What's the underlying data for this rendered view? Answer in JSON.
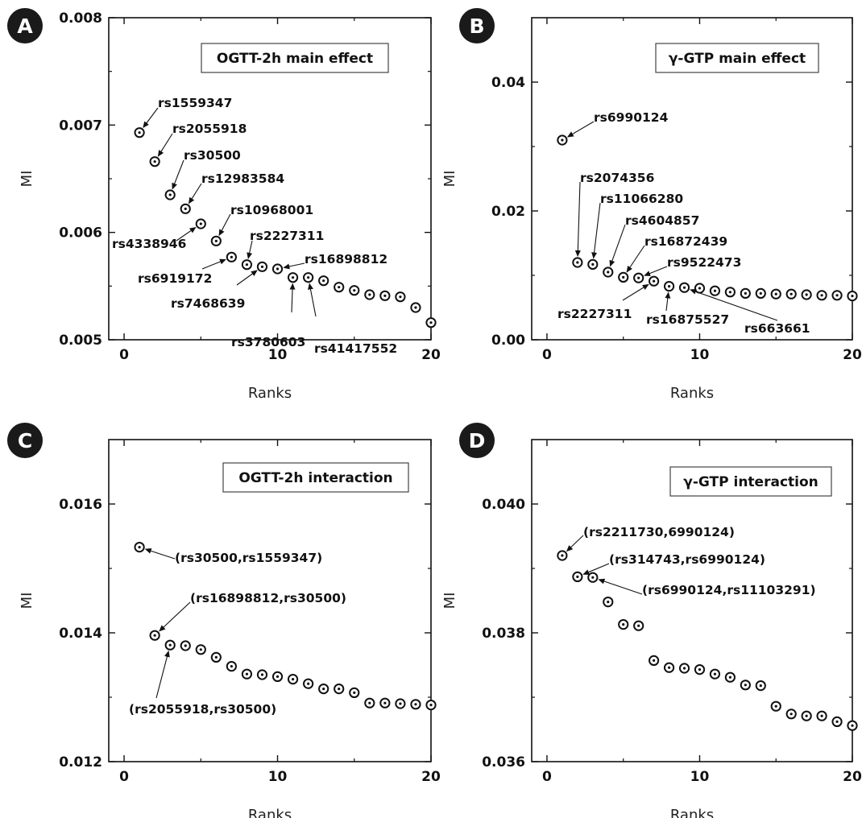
{
  "chart_data": [
    {
      "panel": "A",
      "type": "scatter",
      "title": "OGTT-2h main effect",
      "xlabel": "Ranks",
      "ylabel": "MI",
      "xlim": [
        -1,
        20
      ],
      "ylim": [
        0.005,
        0.008
      ],
      "xticks": [
        0,
        10,
        20
      ],
      "xtick_labels": [
        "0",
        "10",
        "20"
      ],
      "yticks": [
        0.005,
        0.006,
        0.007,
        0.008
      ],
      "ytick_labels": [
        "0.005",
        "0.006",
        "0.007",
        "0.008"
      ],
      "x": [
        1,
        2,
        3,
        4,
        5,
        6,
        7,
        8,
        9,
        10,
        11,
        12,
        13,
        14,
        15,
        16,
        17,
        18,
        19,
        20
      ],
      "y": [
        0.00693,
        0.00666,
        0.00635,
        0.00622,
        0.00608,
        0.00592,
        0.00577,
        0.0057,
        0.00568,
        0.00566,
        0.00558,
        0.00558,
        0.00555,
        0.00549,
        0.00546,
        0.00542,
        0.00541,
        0.0054,
        0.0053,
        0.00516
      ],
      "annotations": [
        {
          "text": "rs1559347",
          "point": 1
        },
        {
          "text": "rs2055918",
          "point": 2
        },
        {
          "text": "rs30500",
          "point": 3
        },
        {
          "text": "rs12983584",
          "point": 4
        },
        {
          "text": "rs4338946",
          "point": 5
        },
        {
          "text": "rs10968001",
          "point": 6
        },
        {
          "text": "rs6919172",
          "point": 7
        },
        {
          "text": "rs2227311",
          "point": 8
        },
        {
          "text": "rs7468639",
          "point": 9
        },
        {
          "text": "rs16898812",
          "point": 10
        },
        {
          "text": "rs3780603",
          "point": 11
        },
        {
          "text": "rs41417552",
          "point": 12
        }
      ]
    },
    {
      "panel": "B",
      "type": "scatter",
      "title": "γ-GTP main effect",
      "xlabel": "Ranks",
      "ylabel": "MI",
      "xlim": [
        -1,
        20
      ],
      "ylim": [
        0.0,
        0.05
      ],
      "xticks": [
        0,
        10,
        20
      ],
      "xtick_labels": [
        "0",
        "10",
        "20"
      ],
      "yticks": [
        0.0,
        0.02,
        0.04
      ],
      "ytick_labels": [
        "0.00",
        "0.02",
        "0.04"
      ],
      "x": [
        1,
        2,
        3,
        4,
        5,
        6,
        7,
        8,
        9,
        10,
        11,
        12,
        13,
        14,
        15,
        16,
        17,
        18,
        19,
        20
      ],
      "y": [
        0.031,
        0.012,
        0.0117,
        0.0105,
        0.0097,
        0.0096,
        0.0091,
        0.0083,
        0.0081,
        0.008,
        0.0076,
        0.0074,
        0.0072,
        0.0072,
        0.0071,
        0.0071,
        0.007,
        0.0069,
        0.0069,
        0.0068
      ],
      "annotations": [
        {
          "text": "rs6990124",
          "point": 1
        },
        {
          "text": "rs2074356",
          "point": 2
        },
        {
          "text": "rs11066280",
          "point": 3
        },
        {
          "text": "rs4604857",
          "point": 4
        },
        {
          "text": "rs16872439",
          "point": 5
        },
        {
          "text": "rs9522473",
          "point": 6
        },
        {
          "text": "rs2227311",
          "point": 7
        },
        {
          "text": "rs16875527",
          "point": 8
        },
        {
          "text": "rs663661",
          "point": 9
        }
      ]
    },
    {
      "panel": "C",
      "type": "scatter",
      "title": "OGTT-2h interaction",
      "xlabel": "Ranks",
      "ylabel": "MI",
      "xlim": [
        -1,
        20
      ],
      "ylim": [
        0.012,
        0.017
      ],
      "xticks": [
        0,
        10,
        20
      ],
      "xtick_labels": [
        "0",
        "10",
        "20"
      ],
      "yticks": [
        0.012,
        0.014,
        0.016
      ],
      "ytick_labels": [
        "0.012",
        "0.014",
        "0.016"
      ],
      "x": [
        1,
        2,
        3,
        4,
        5,
        6,
        7,
        8,
        9,
        10,
        11,
        12,
        13,
        14,
        15,
        16,
        17,
        18,
        19,
        20
      ],
      "y": [
        0.01533,
        0.01396,
        0.01381,
        0.0138,
        0.01374,
        0.01362,
        0.01348,
        0.01336,
        0.01335,
        0.01332,
        0.01328,
        0.01321,
        0.01313,
        0.01313,
        0.01307,
        0.01291,
        0.01291,
        0.0129,
        0.01289,
        0.01288
      ],
      "annotations": [
        {
          "text": "(rs30500,rs1559347)",
          "point": 1
        },
        {
          "text": "(rs16898812,rs30500)",
          "point": 2
        },
        {
          "text": "(rs2055918,rs30500)",
          "point": 3
        }
      ]
    },
    {
      "panel": "D",
      "type": "scatter",
      "title": "γ-GTP interaction",
      "xlabel": "Ranks",
      "ylabel": "MI",
      "xlim": [
        -1,
        20
      ],
      "ylim": [
        0.036,
        0.041
      ],
      "xticks": [
        0,
        10,
        20
      ],
      "xtick_labels": [
        "0",
        "10",
        "20"
      ],
      "yticks": [
        0.036,
        0.038,
        0.04
      ],
      "ytick_labels": [
        "0.036",
        "0.038",
        "0.040"
      ],
      "x": [
        1,
        2,
        3,
        4,
        5,
        6,
        7,
        8,
        9,
        10,
        11,
        12,
        13,
        14,
        15,
        16,
        17,
        18,
        19,
        20
      ],
      "y": [
        0.0392,
        0.03887,
        0.03886,
        0.03848,
        0.03813,
        0.03811,
        0.03757,
        0.03746,
        0.03745,
        0.03743,
        0.03736,
        0.03731,
        0.03719,
        0.03718,
        0.03686,
        0.03674,
        0.03671,
        0.03671,
        0.03662,
        0.03656
      ],
      "annotations": [
        {
          "text": "(rs2211730,6990124)",
          "point": 1
        },
        {
          "text": "(rs314743,rs6990124)",
          "point": 2
        },
        {
          "text": "(rs6990124,rs11103291)",
          "point": 3
        }
      ]
    }
  ]
}
